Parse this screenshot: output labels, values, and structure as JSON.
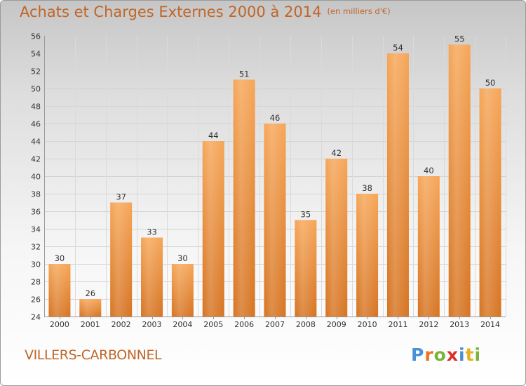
{
  "title": "Achats et Charges Externes 2000 à 2014",
  "subtitle": "(en milliers d'€)",
  "commune": "VILLERS-CARBONNEL",
  "logo": {
    "letters": [
      "P",
      "r",
      "o",
      "x",
      "i",
      "t",
      "i"
    ],
    "colors": [
      "#4a90d9",
      "#e8732a",
      "#7bb33a",
      "#d9302a",
      "#4a90d9",
      "#e8b020",
      "#7bb33a"
    ]
  },
  "colors": {
    "accent": "#c0662a",
    "bar_light": "#f6a658",
    "bar_dark": "#d67422",
    "text": "#333333"
  },
  "chart_data": {
    "type": "bar",
    "title": "Achats et Charges Externes 2000 à 2014",
    "subtitle": "(en milliers d'€)",
    "categories": [
      "2000",
      "2001",
      "2002",
      "2003",
      "2004",
      "2005",
      "2006",
      "2007",
      "2008",
      "2009",
      "2010",
      "2011",
      "2012",
      "2013",
      "2014"
    ],
    "values": [
      30,
      26,
      37,
      33,
      30,
      44,
      51,
      46,
      35,
      42,
      38,
      54,
      40,
      55,
      50
    ],
    "ylim": [
      24,
      56
    ],
    "yticks": [
      24,
      26,
      28,
      30,
      32,
      34,
      36,
      38,
      40,
      42,
      44,
      46,
      48,
      50,
      52,
      54,
      56
    ],
    "grid": true,
    "legend": "none"
  }
}
